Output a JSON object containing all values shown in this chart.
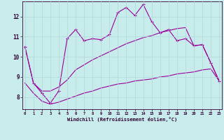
{
  "background_color": "#c8ecec",
  "line_color": "#990099",
  "grid_color": "#b0d8d8",
  "tick_color": "#330033",
  "xlabel": "Windchill (Refroidissement éolien,°C)",
  "x_ticks": [
    0,
    1,
    2,
    3,
    4,
    5,
    6,
    7,
    8,
    9,
    10,
    11,
    12,
    13,
    14,
    15,
    16,
    17,
    18,
    19,
    20,
    21,
    22,
    23
  ],
  "y_ticks": [
    8,
    9,
    10,
    11,
    12
  ],
  "ylim": [
    7.4,
    12.75
  ],
  "xlim": [
    -0.3,
    23.3
  ],
  "main_line": [
    10.5,
    8.7,
    8.2,
    7.7,
    8.3,
    10.9,
    11.35,
    10.8,
    10.9,
    10.85,
    11.1,
    12.2,
    12.45,
    12.05,
    12.6,
    11.75,
    11.2,
    11.35,
    10.8,
    10.9,
    10.55,
    10.6,
    9.7,
    8.8
  ],
  "upper_line": [
    10.5,
    8.7,
    8.3,
    8.3,
    8.5,
    8.85,
    9.35,
    9.6,
    9.85,
    10.05,
    10.25,
    10.45,
    10.65,
    10.8,
    10.95,
    11.05,
    11.2,
    11.3,
    11.4,
    11.45,
    10.55,
    10.6,
    9.7,
    8.8
  ],
  "lower_line": [
    8.7,
    8.2,
    7.8,
    7.65,
    7.75,
    7.9,
    8.05,
    8.2,
    8.3,
    8.45,
    8.55,
    8.65,
    8.7,
    8.8,
    8.85,
    8.9,
    9.0,
    9.05,
    9.15,
    9.2,
    9.25,
    9.35,
    9.4,
    8.8
  ]
}
